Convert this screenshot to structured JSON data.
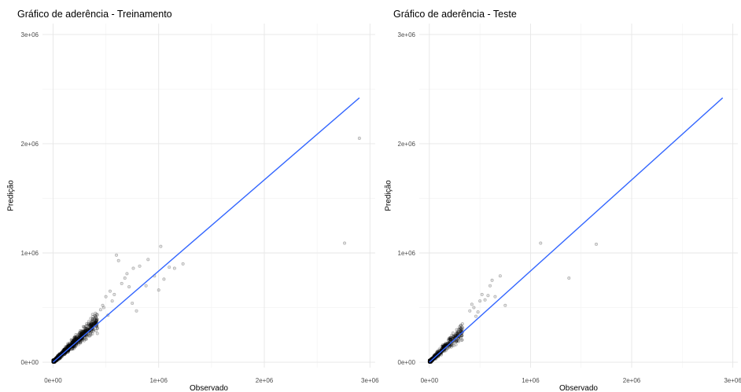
{
  "chart_data": [
    {
      "type": "scatter",
      "title": "Gráfico de aderência - Treinamento",
      "xlabel": "Observado",
      "ylabel": "Predição",
      "xlim": [
        -100000,
        3050000
      ],
      "ylim": [
        -50000,
        3100000
      ],
      "x_ticks": [
        0,
        1000000,
        2000000,
        3000000
      ],
      "x_tick_labels": [
        "0e+00",
        "1e+06",
        "2e+06",
        "3e+06"
      ],
      "y_ticks": [
        0,
        1000000,
        2000000,
        3000000
      ],
      "y_tick_labels": [
        "0e+00",
        "1e+06",
        "2e+06",
        "3e+06"
      ],
      "grid": true,
      "trend_line": {
        "x": [
          0,
          2900000
        ],
        "y": [
          0,
          2420000
        ],
        "color": "#3366ff"
      },
      "cluster": {
        "x_max": 420000,
        "slope": 0.9,
        "spread": 0.35,
        "count": 900
      },
      "points": {
        "x": [
          600000,
          620000,
          700000,
          760000,
          820000,
          880000,
          900000,
          960000,
          1000000,
          1020000,
          1050000,
          1100000,
          1150000,
          1230000,
          2760000,
          2900000,
          500000,
          540000,
          560000,
          580000,
          650000,
          680000,
          720000,
          450000,
          470000,
          480000,
          520000,
          750000,
          790000
        ],
        "y": [
          980000,
          930000,
          810000,
          860000,
          880000,
          700000,
          940000,
          790000,
          660000,
          1060000,
          760000,
          870000,
          860000,
          900000,
          1090000,
          2050000,
          600000,
          650000,
          560000,
          620000,
          720000,
          770000,
          690000,
          480000,
          520000,
          500000,
          430000,
          540000,
          470000
        ]
      },
      "point_color": "#000000",
      "point_alpha": 0.3
    },
    {
      "type": "scatter",
      "title": "Gráfico de aderência - Teste",
      "xlabel": "Observado",
      "ylabel": "Predição",
      "xlim": [
        -100000,
        3050000
      ],
      "ylim": [
        -50000,
        3100000
      ],
      "x_ticks": [
        0,
        1000000,
        2000000,
        3000000
      ],
      "x_tick_labels": [
        "0e+00",
        "1e+06",
        "2e+06",
        "3e+06"
      ],
      "y_ticks": [
        0,
        1000000,
        2000000,
        3000000
      ],
      "y_tick_labels": [
        "0e+00",
        "1e+06",
        "2e+06",
        "3e+06"
      ],
      "grid": true,
      "trend_line": {
        "x": [
          0,
          2900000
        ],
        "y": [
          0,
          2420000
        ],
        "color": "#3366ff"
      },
      "cluster": {
        "x_max": 330000,
        "slope": 0.9,
        "spread": 0.35,
        "count": 450
      },
      "points": {
        "x": [
          1100000,
          1650000,
          1380000,
          550000,
          600000,
          620000,
          700000,
          650000,
          750000,
          480000,
          500000,
          520000,
          580000,
          440000,
          460000,
          400000,
          420000
        ],
        "y": [
          1090000,
          1080000,
          770000,
          570000,
          700000,
          750000,
          790000,
          600000,
          520000,
          460000,
          560000,
          620000,
          610000,
          500000,
          420000,
          470000,
          530000
        ]
      },
      "point_color": "#000000",
      "point_alpha": 0.3
    }
  ]
}
